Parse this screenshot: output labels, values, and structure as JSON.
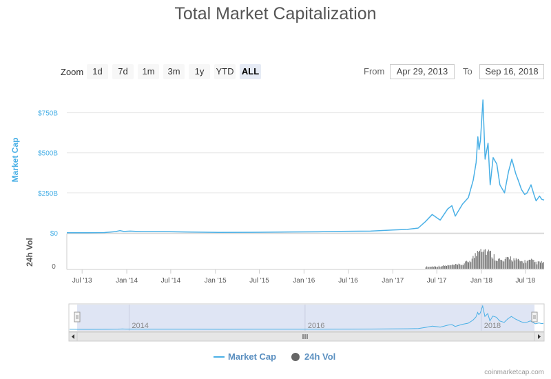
{
  "page": {
    "title": "Total Market Capitalization",
    "zoom_label": "Zoom",
    "zoom_buttons": [
      "1d",
      "7d",
      "1m",
      "3m",
      "1y",
      "YTD",
      "ALL"
    ],
    "zoom_selected": "ALL",
    "from_label": "From",
    "to_label": "To",
    "from_value": "Apr 29, 2013",
    "to_value": "Sep 16, 2018",
    "credit": "coinmarketcap.com"
  },
  "legend": {
    "market_cap": "Market Cap",
    "vol": "24h Vol"
  },
  "colors": {
    "market_cap_line": "#4ab0e6",
    "volume_bars": "#666666",
    "navigator_fill": "#d4dcf0",
    "axis_label": "#4ab0e6"
  },
  "icons": {
    "market_cap_legend": "line-icon",
    "vol_legend": "circle-icon",
    "navigator_scroll": "triangle-arrows"
  },
  "chart_data": {
    "type": "line",
    "x_range": [
      "2013-04-29",
      "2018-09-16"
    ],
    "y_label": "Market Cap",
    "y_ticks": [
      "$0",
      "$250B",
      "$500B",
      "$750B"
    ],
    "y_range": [
      0,
      860
    ],
    "y_unit": "billion USD",
    "x_tick_labels": [
      "Jul '13",
      "Jan '14",
      "Jul '14",
      "Jan '15",
      "Jul '15",
      "Jan '16",
      "Jul '16",
      "Jan '17",
      "Jul '17",
      "Jan '18",
      "Jul '18"
    ],
    "x_tick_dates": [
      "2013-07-01",
      "2014-01-01",
      "2014-07-01",
      "2015-01-01",
      "2015-07-01",
      "2016-01-01",
      "2016-07-01",
      "2017-01-01",
      "2017-07-01",
      "2018-01-01",
      "2018-07-01"
    ],
    "series": [
      {
        "name": "Market Cap",
        "points": [
          [
            "2013-04-29",
            1.5
          ],
          [
            "2013-07-01",
            1.0
          ],
          [
            "2013-10-01",
            2.0
          ],
          [
            "2013-11-15",
            8
          ],
          [
            "2013-12-04",
            14
          ],
          [
            "2013-12-20",
            9
          ],
          [
            "2014-01-15",
            11
          ],
          [
            "2014-03-01",
            8
          ],
          [
            "2014-06-01",
            8
          ],
          [
            "2014-09-01",
            6
          ],
          [
            "2015-01-15",
            3.5
          ],
          [
            "2015-06-01",
            4
          ],
          [
            "2015-11-01",
            6
          ],
          [
            "2016-03-01",
            7
          ],
          [
            "2016-06-01",
            10
          ],
          [
            "2016-10-01",
            11
          ],
          [
            "2017-01-01",
            18
          ],
          [
            "2017-03-01",
            22
          ],
          [
            "2017-04-15",
            30
          ],
          [
            "2017-05-15",
            70
          ],
          [
            "2017-06-12",
            115
          ],
          [
            "2017-07-15",
            80
          ],
          [
            "2017-08-15",
            150
          ],
          [
            "2017-09-01",
            170
          ],
          [
            "2017-09-15",
            105
          ],
          [
            "2017-10-15",
            180
          ],
          [
            "2017-11-08",
            220
          ],
          [
            "2017-11-28",
            330
          ],
          [
            "2017-12-10",
            440
          ],
          [
            "2017-12-17",
            600
          ],
          [
            "2017-12-22",
            520
          ],
          [
            "2017-12-28",
            580
          ],
          [
            "2018-01-07",
            830
          ],
          [
            "2018-01-16",
            460
          ],
          [
            "2018-01-28",
            560
          ],
          [
            "2018-02-06",
            300
          ],
          [
            "2018-02-18",
            470
          ],
          [
            "2018-03-05",
            430
          ],
          [
            "2018-03-18",
            300
          ],
          [
            "2018-04-06",
            250
          ],
          [
            "2018-04-22",
            380
          ],
          [
            "2018-05-06",
            460
          ],
          [
            "2018-05-22",
            370
          ],
          [
            "2018-06-01",
            330
          ],
          [
            "2018-06-15",
            270
          ],
          [
            "2018-06-28",
            240
          ],
          [
            "2018-07-08",
            250
          ],
          [
            "2018-07-24",
            300
          ],
          [
            "2018-08-05",
            240
          ],
          [
            "2018-08-14",
            200
          ],
          [
            "2018-08-28",
            230
          ],
          [
            "2018-09-06",
            210
          ],
          [
            "2018-09-16",
            205
          ]
        ]
      },
      {
        "name": "24h Vol",
        "points": [
          [
            "2017-05-15",
            0.08
          ],
          [
            "2017-07-01",
            0.1
          ],
          [
            "2017-09-01",
            0.15
          ],
          [
            "2017-10-15",
            0.18
          ],
          [
            "2017-11-20",
            0.4
          ],
          [
            "2017-12-10",
            0.62
          ],
          [
            "2017-12-22",
            1.0
          ],
          [
            "2018-01-06",
            0.88
          ],
          [
            "2018-01-16",
            0.78
          ],
          [
            "2018-02-06",
            0.65
          ],
          [
            "2018-03-01",
            0.45
          ],
          [
            "2018-04-01",
            0.3
          ],
          [
            "2018-04-25",
            0.5
          ],
          [
            "2018-05-15",
            0.38
          ],
          [
            "2018-06-15",
            0.3
          ],
          [
            "2018-07-25",
            0.34
          ],
          [
            "2018-08-15",
            0.25
          ],
          [
            "2018-09-16",
            0.28
          ]
        ]
      }
    ],
    "volume_axis_label": "24h Vol",
    "volume_axis_tick": "0",
    "navigator_labels": [
      "2014",
      "2016",
      "2018"
    ],
    "navigator_label_dates": [
      "2014-01-01",
      "2016-01-01",
      "2018-01-01"
    ]
  }
}
